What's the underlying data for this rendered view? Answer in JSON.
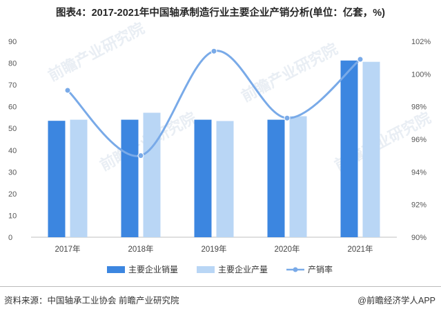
{
  "title": "图表4：2017-2021年中国轴承制造行业主要企业产销分析(单位：亿套，%)",
  "footer": {
    "source": "资料来源：中国轴承工业协会 前瞻产业研究院",
    "brand": "@前瞻经济学人APP"
  },
  "watermark": "前瞻产业研究院",
  "colors": {
    "sales": "#3c86e0",
    "production": "#b9d6f5",
    "rate": "#79aae8"
  },
  "chart_data": {
    "type": "bar",
    "categories": [
      "2017年",
      "2018年",
      "2019年",
      "2020年",
      "2021年"
    ],
    "series": [
      {
        "name": "主要企业销量",
        "type": "bar",
        "axis": "left",
        "values": [
          53.5,
          54,
          54,
          54,
          81.2
        ]
      },
      {
        "name": "主要企业产量",
        "type": "bar",
        "axis": "left",
        "values": [
          54,
          57.2,
          53.4,
          55.6,
          80.6
        ]
      },
      {
        "name": "产销率",
        "type": "line",
        "axis": "right",
        "smooth": true,
        "values": [
          99,
          95,
          101.4,
          97.3,
          100.9
        ]
      }
    ],
    "y_left": {
      "ylim": [
        0,
        90
      ],
      "ticks": [
        "0",
        "10",
        "20",
        "30",
        "40",
        "50",
        "60",
        "70",
        "80",
        "90"
      ]
    },
    "y_right": {
      "ylim": [
        90,
        102
      ],
      "ticks": [
        "90%",
        "92%",
        "94%",
        "96%",
        "98%",
        "100%",
        "102%"
      ]
    },
    "legend": "bottom-center",
    "grid": false
  }
}
